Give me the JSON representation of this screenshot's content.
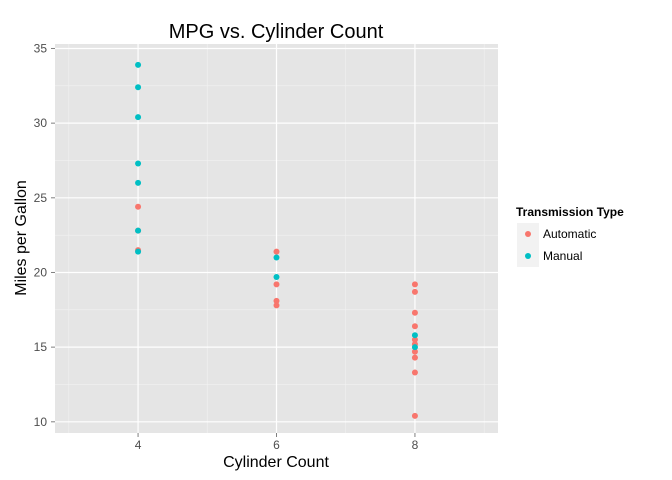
{
  "chart_data": {
    "type": "scatter",
    "title": "MPG vs. Cylinder Count",
    "xlabel": "Cylinder Count",
    "ylabel": "Miles per Gallon",
    "xlim": [
      2.8,
      9.2
    ],
    "ylim": [
      9.25,
      35.3
    ],
    "x_ticks": [
      4,
      6,
      8
    ],
    "y_ticks": [
      10,
      15,
      20,
      25,
      30,
      35
    ],
    "grid": true,
    "legend": {
      "title": "Transmission Type",
      "position": "right"
    },
    "series": [
      {
        "name": "Automatic",
        "color": "#F8766D",
        "points": [
          {
            "x": 4,
            "y": 24.4
          },
          {
            "x": 4,
            "y": 22.8
          },
          {
            "x": 4,
            "y": 21.5
          },
          {
            "x": 6,
            "y": 21.4
          },
          {
            "x": 6,
            "y": 19.2
          },
          {
            "x": 6,
            "y": 18.1
          },
          {
            "x": 6,
            "y": 17.8
          },
          {
            "x": 8,
            "y": 19.2
          },
          {
            "x": 8,
            "y": 18.7
          },
          {
            "x": 8,
            "y": 17.3
          },
          {
            "x": 8,
            "y": 16.4
          },
          {
            "x": 8,
            "y": 15.5
          },
          {
            "x": 8,
            "y": 15.2
          },
          {
            "x": 8,
            "y": 14.7
          },
          {
            "x": 8,
            "y": 14.3
          },
          {
            "x": 8,
            "y": 13.3
          },
          {
            "x": 8,
            "y": 10.4
          }
        ]
      },
      {
        "name": "Manual",
        "color": "#00BFC4",
        "points": [
          {
            "x": 4,
            "y": 33.9
          },
          {
            "x": 4,
            "y": 32.4
          },
          {
            "x": 4,
            "y": 30.4
          },
          {
            "x": 4,
            "y": 27.3
          },
          {
            "x": 4,
            "y": 26.0
          },
          {
            "x": 4,
            "y": 22.8
          },
          {
            "x": 4,
            "y": 21.4
          },
          {
            "x": 6,
            "y": 21.0
          },
          {
            "x": 6,
            "y": 19.7
          },
          {
            "x": 8,
            "y": 15.8
          },
          {
            "x": 8,
            "y": 15.0
          }
        ]
      }
    ]
  }
}
